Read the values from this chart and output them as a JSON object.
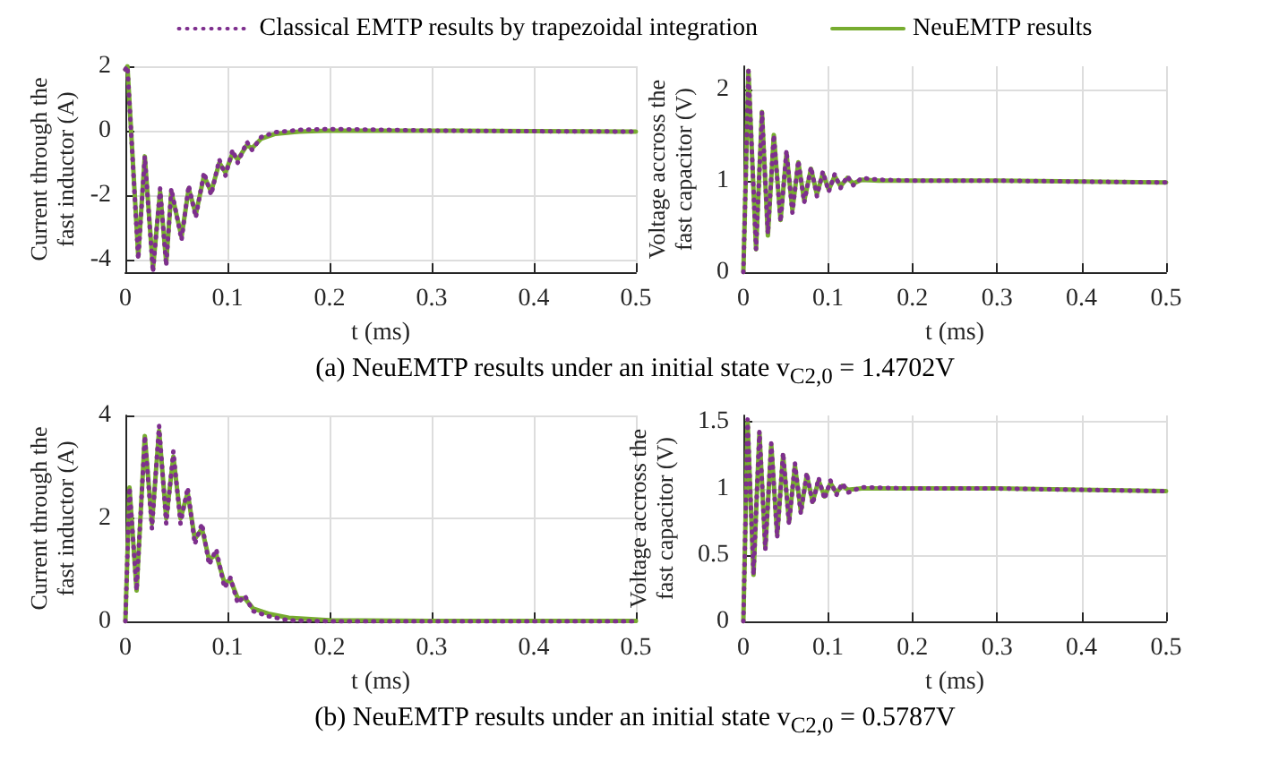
{
  "chart_data": [
    {
      "type": "line",
      "xlabel": "t (ms)",
      "ylabel": "Current through the fast inductor (A)",
      "xlim": [
        0,
        0.5
      ],
      "xticks": [
        0,
        0.1,
        0.2,
        0.3,
        0.4,
        0.5
      ],
      "ylim": [
        -4.4,
        2
      ],
      "yticks": [
        -4,
        -2,
        0,
        2
      ],
      "grid": true,
      "legend": "top",
      "marker": "none",
      "annotations": [
        "(a) NeuEMTP results under an initial state v$_{C2,0}$ = 1.4702V"
      ],
      "series": [
        {
          "name": "Classical EMTP results by trapezoidal integration",
          "color": "#7e2f8e",
          "line_style": "dotted",
          "x": [
            0,
            0.002,
            0.0126,
            0.019,
            0.027,
            0.034,
            0.04,
            0.045,
            0.055,
            0.062,
            0.069,
            0.077,
            0.084,
            0.092,
            0.098,
            0.105,
            0.11,
            0.119,
            0.124,
            0.133,
            0.147,
            0.17,
            0.2,
            0.3,
            0.4,
            0.5
          ],
          "values": [
            1.9,
            2,
            -4.0,
            -0.8,
            -4.4,
            -1.8,
            -4.2,
            -1.8,
            -3.4,
            -1.7,
            -2.7,
            -1.3,
            -2.0,
            -0.9,
            -1.4,
            -0.6,
            -1.0,
            -0.35,
            -0.6,
            -0.2,
            -0.05,
            0.02,
            0.05,
            0,
            -0.02,
            -0.03
          ]
        },
        {
          "name": "NeuEMTP results",
          "color": "#77ac30",
          "line_style": "solid",
          "x": [
            0,
            0.002,
            0.0126,
            0.019,
            0.027,
            0.034,
            0.04,
            0.045,
            0.055,
            0.062,
            0.069,
            0.077,
            0.084,
            0.092,
            0.098,
            0.105,
            0.11,
            0.119,
            0.124,
            0.133,
            0.147,
            0.17,
            0.2,
            0.3,
            0.4,
            0.5
          ],
          "values": [
            1.9,
            2,
            -3.9,
            -0.8,
            -4.3,
            -1.9,
            -4.1,
            -1.9,
            -3.3,
            -1.8,
            -2.6,
            -1.4,
            -1.9,
            -1.0,
            -1.3,
            -0.7,
            -0.9,
            -0.45,
            -0.55,
            -0.25,
            -0.1,
            -0.03,
            0,
            0,
            -0.02,
            -0.03
          ]
        }
      ]
    },
    {
      "type": "line",
      "xlabel": "t (ms)",
      "ylabel": "Voltage accross the fast capacitor (V)",
      "xlim": [
        0,
        0.5
      ],
      "xticks": [
        0,
        0.1,
        0.2,
        0.3,
        0.4,
        0.5
      ],
      "ylim": [
        0,
        2.25
      ],
      "yticks": [
        0,
        1,
        2
      ],
      "grid": true,
      "marker": "none",
      "series": [
        {
          "color": "#7e2f8e",
          "line_style": "dotted",
          "x": [
            0,
            0.006,
            0.015,
            0.022,
            0.029,
            0.036,
            0.044,
            0.051,
            0.058,
            0.065,
            0.072,
            0.08,
            0.087,
            0.094,
            0.101,
            0.108,
            0.115,
            0.123,
            0.13,
            0.14,
            0.16,
            0.2,
            0.3,
            0.4,
            0.5
          ],
          "values": [
            0,
            2.2,
            0.25,
            1.75,
            0.42,
            1.5,
            0.55,
            1.33,
            0.65,
            1.22,
            0.76,
            1.15,
            0.83,
            1.1,
            0.88,
            1.07,
            0.92,
            1.05,
            0.95,
            1.03,
            1.01,
            1,
            1,
            0.99,
            0.98
          ]
        },
        {
          "color": "#77ac30",
          "line_style": "solid",
          "x": [
            0,
            0.006,
            0.015,
            0.022,
            0.029,
            0.036,
            0.044,
            0.051,
            0.058,
            0.065,
            0.072,
            0.08,
            0.087,
            0.094,
            0.101,
            0.108,
            0.115,
            0.123,
            0.13,
            0.14,
            0.16,
            0.2,
            0.3,
            0.4,
            0.5
          ],
          "values": [
            0,
            2.2,
            0.25,
            1.75,
            0.4,
            1.5,
            0.57,
            1.3,
            0.68,
            1.2,
            0.78,
            1.13,
            0.85,
            1.08,
            0.9,
            1.05,
            0.94,
            1.03,
            0.97,
            1.01,
            1,
            1,
            1,
            0.99,
            0.98
          ]
        }
      ]
    },
    {
      "type": "line",
      "xlabel": "t (ms)",
      "ylabel": "Current through the fast inductor (A)",
      "xlim": [
        0,
        0.5
      ],
      "xticks": [
        0,
        0.1,
        0.2,
        0.3,
        0.4,
        0.5
      ],
      "ylim": [
        0,
        4
      ],
      "yticks": [
        0,
        2,
        4
      ],
      "grid": true,
      "marker": "none",
      "annotations": [
        "(b) NeuEMTP results under an initial state v$_{C2,0}$ = 0.5787V"
      ],
      "series": [
        {
          "color": "#7e2f8e",
          "line_style": "dotted",
          "x": [
            0,
            0.004,
            0.011,
            0.019,
            0.026,
            0.033,
            0.04,
            0.047,
            0.054,
            0.061,
            0.068,
            0.075,
            0.082,
            0.089,
            0.097,
            0.103,
            0.11,
            0.117,
            0.125,
            0.14,
            0.16,
            0.2,
            0.3,
            0.4,
            0.5
          ],
          "values": [
            0,
            2.6,
            0.6,
            3.6,
            1.8,
            3.8,
            1.9,
            3.3,
            1.9,
            2.6,
            1.5,
            1.9,
            1.1,
            1.4,
            0.65,
            0.85,
            0.35,
            0.5,
            0.2,
            0.1,
            0.02,
            0,
            0,
            0,
            0
          ]
        },
        {
          "color": "#77ac30",
          "line_style": "solid",
          "x": [
            0,
            0.004,
            0.011,
            0.019,
            0.026,
            0.033,
            0.04,
            0.047,
            0.054,
            0.061,
            0.068,
            0.075,
            0.082,
            0.089,
            0.097,
            0.103,
            0.11,
            0.117,
            0.125,
            0.14,
            0.16,
            0.2,
            0.3,
            0.4,
            0.5
          ],
          "values": [
            0,
            2.6,
            0.6,
            3.6,
            1.9,
            3.7,
            2.0,
            3.2,
            2.0,
            2.5,
            1.6,
            1.8,
            1.2,
            1.3,
            0.75,
            0.8,
            0.45,
            0.45,
            0.25,
            0.15,
            0.07,
            0.02,
            0.01,
            0.01,
            0.01
          ]
        }
      ]
    },
    {
      "type": "line",
      "xlabel": "t (ms)",
      "ylabel": "Voltage accross the fast capacitor (V)",
      "xlim": [
        0,
        0.5
      ],
      "xticks": [
        0,
        0.1,
        0.2,
        0.3,
        0.4,
        0.5
      ],
      "ylim": [
        0,
        1.55
      ],
      "yticks": [
        0,
        0.5,
        1,
        1.5
      ],
      "grid": true,
      "marker": "none",
      "series": [
        {
          "color": "#7e2f8e",
          "line_style": "dotted",
          "x": [
            0,
            0.005,
            0.012,
            0.019,
            0.026,
            0.033,
            0.04,
            0.047,
            0.054,
            0.061,
            0.068,
            0.075,
            0.082,
            0.089,
            0.096,
            0.103,
            0.11,
            0.117,
            0.124,
            0.14,
            0.2,
            0.3,
            0.4,
            0.5
          ],
          "values": [
            0,
            1.52,
            0.35,
            1.43,
            0.54,
            1.34,
            0.63,
            1.27,
            0.73,
            1.19,
            0.81,
            1.12,
            0.88,
            1.08,
            0.92,
            1.06,
            0.95,
            1.04,
            0.97,
            1.01,
            1,
            1,
            0.99,
            0.98
          ]
        },
        {
          "color": "#77ac30",
          "line_style": "solid",
          "x": [
            0,
            0.005,
            0.012,
            0.019,
            0.026,
            0.033,
            0.04,
            0.047,
            0.054,
            0.061,
            0.068,
            0.075,
            0.082,
            0.089,
            0.096,
            0.103,
            0.11,
            0.117,
            0.124,
            0.14,
            0.2,
            0.3,
            0.4,
            0.5
          ],
          "values": [
            0,
            1.5,
            0.35,
            1.42,
            0.55,
            1.33,
            0.65,
            1.25,
            0.75,
            1.17,
            0.83,
            1.1,
            0.9,
            1.06,
            0.94,
            1.04,
            0.97,
            1.02,
            0.99,
            1,
            1,
            1,
            0.99,
            0.98
          ]
        }
      ]
    }
  ]
}
